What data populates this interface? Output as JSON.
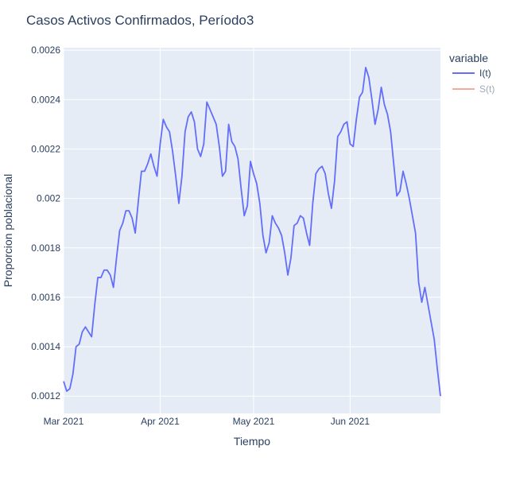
{
  "chart_data": {
    "type": "line",
    "title": "Casos Activos Confirmados, Período3",
    "xlabel": "Tiempo",
    "ylabel": "Proporcion poblacional",
    "x_start": "2021-03-01",
    "x_end": "2021-06-30",
    "xlim": [
      "2021-03-01",
      "2021-06-30"
    ],
    "ylim": [
      0.00113,
      0.00261
    ],
    "x_ticks": [
      {
        "date": "2021-03-01",
        "label": "Mar 2021"
      },
      {
        "date": "2021-04-01",
        "label": "Apr 2021"
      },
      {
        "date": "2021-05-01",
        "label": "May 2021"
      },
      {
        "date": "2021-06-01",
        "label": "Jun 2021"
      }
    ],
    "y_ticks": [
      {
        "value": 0.0012,
        "label": "0.0012"
      },
      {
        "value": 0.0014,
        "label": "0.0014"
      },
      {
        "value": 0.0016,
        "label": "0.0016"
      },
      {
        "value": 0.0018,
        "label": "0.0018"
      },
      {
        "value": 0.002,
        "label": "0.002"
      },
      {
        "value": 0.0022,
        "label": "0.0022"
      },
      {
        "value": 0.0024,
        "label": "0.0024"
      },
      {
        "value": 0.0026,
        "label": "0.0026"
      }
    ],
    "grid": true,
    "legend": {
      "title": "variable",
      "placement": "top-right",
      "entries": [
        {
          "name": "I(t)",
          "color": "#636efa",
          "visible": true
        },
        {
          "name": "S(t)",
          "color": "#ef553b",
          "visible": false
        }
      ]
    },
    "series": [
      {
        "name": "I(t)",
        "color": "#636efa",
        "x": [
          "2021-03-01",
          "2021-03-02",
          "2021-03-03",
          "2021-03-04",
          "2021-03-05",
          "2021-03-06",
          "2021-03-07",
          "2021-03-08",
          "2021-03-09",
          "2021-03-10",
          "2021-03-11",
          "2021-03-12",
          "2021-03-13",
          "2021-03-14",
          "2021-03-15",
          "2021-03-16",
          "2021-03-17",
          "2021-03-18",
          "2021-03-19",
          "2021-03-20",
          "2021-03-21",
          "2021-03-22",
          "2021-03-23",
          "2021-03-24",
          "2021-03-25",
          "2021-03-26",
          "2021-03-27",
          "2021-03-28",
          "2021-03-29",
          "2021-03-30",
          "2021-03-31",
          "2021-04-01",
          "2021-04-02",
          "2021-04-03",
          "2021-04-04",
          "2021-04-05",
          "2021-04-06",
          "2021-04-07",
          "2021-04-08",
          "2021-04-09",
          "2021-04-10",
          "2021-04-11",
          "2021-04-12",
          "2021-04-13",
          "2021-04-14",
          "2021-04-15",
          "2021-04-16",
          "2021-04-17",
          "2021-04-18",
          "2021-04-19",
          "2021-04-20",
          "2021-04-21",
          "2021-04-22",
          "2021-04-23",
          "2021-04-24",
          "2021-04-25",
          "2021-04-26",
          "2021-04-27",
          "2021-04-28",
          "2021-04-29",
          "2021-04-30",
          "2021-05-01",
          "2021-05-02",
          "2021-05-03",
          "2021-05-04",
          "2021-05-05",
          "2021-05-06",
          "2021-05-07",
          "2021-05-08",
          "2021-05-09",
          "2021-05-10",
          "2021-05-11",
          "2021-05-12",
          "2021-05-13",
          "2021-05-14",
          "2021-05-15",
          "2021-05-16",
          "2021-05-17",
          "2021-05-18",
          "2021-05-19",
          "2021-05-20",
          "2021-05-21",
          "2021-05-22",
          "2021-05-23",
          "2021-05-24",
          "2021-05-25",
          "2021-05-26",
          "2021-05-27",
          "2021-05-28",
          "2021-05-29",
          "2021-05-30",
          "2021-05-31",
          "2021-06-01",
          "2021-06-02",
          "2021-06-03",
          "2021-06-04",
          "2021-06-05",
          "2021-06-06",
          "2021-06-07",
          "2021-06-08",
          "2021-06-09",
          "2021-06-10",
          "2021-06-11",
          "2021-06-12",
          "2021-06-13",
          "2021-06-14",
          "2021-06-15",
          "2021-06-16",
          "2021-06-17",
          "2021-06-18",
          "2021-06-19",
          "2021-06-20",
          "2021-06-21",
          "2021-06-22",
          "2021-06-23",
          "2021-06-24",
          "2021-06-25",
          "2021-06-26",
          "2021-06-27",
          "2021-06-28",
          "2021-06-29",
          "2021-06-30"
        ],
        "y": [
          0.00126,
          0.00122,
          0.00123,
          0.00129,
          0.0014,
          0.00141,
          0.00146,
          0.00148,
          0.00146,
          0.00144,
          0.00157,
          0.00168,
          0.00168,
          0.00171,
          0.00171,
          0.00169,
          0.00164,
          0.00176,
          0.00187,
          0.0019,
          0.00195,
          0.00195,
          0.00192,
          0.00186,
          0.00199,
          0.00211,
          0.00211,
          0.00214,
          0.00218,
          0.00213,
          0.00209,
          0.00222,
          0.00232,
          0.00229,
          0.00227,
          0.00219,
          0.00209,
          0.00198,
          0.00209,
          0.00227,
          0.00233,
          0.00235,
          0.00231,
          0.0022,
          0.00217,
          0.00222,
          0.00239,
          0.00236,
          0.00233,
          0.0023,
          0.00221,
          0.00209,
          0.00211,
          0.0023,
          0.00223,
          0.00221,
          0.00216,
          0.00204,
          0.00193,
          0.00197,
          0.00215,
          0.0021,
          0.00206,
          0.00198,
          0.00185,
          0.00178,
          0.00182,
          0.00193,
          0.0019,
          0.00188,
          0.00185,
          0.00178,
          0.00169,
          0.00176,
          0.00189,
          0.0019,
          0.00193,
          0.00192,
          0.00186,
          0.00181,
          0.00198,
          0.0021,
          0.00212,
          0.00213,
          0.0021,
          0.00202,
          0.00196,
          0.00207,
          0.00225,
          0.00227,
          0.0023,
          0.00231,
          0.00222,
          0.00221,
          0.00232,
          0.00241,
          0.00243,
          0.00253,
          0.00249,
          0.0024,
          0.0023,
          0.00236,
          0.00245,
          0.00238,
          0.00234,
          0.00227,
          0.00214,
          0.00201,
          0.00203,
          0.00211,
          0.00206,
          0.002,
          0.00193,
          0.00186,
          0.00166,
          0.00158,
          0.00164,
          0.00157,
          0.0015,
          0.00143,
          0.00131,
          0.0012
        ]
      },
      {
        "name": "S(t)",
        "color": "#ef553b",
        "visible": false
      }
    ]
  }
}
